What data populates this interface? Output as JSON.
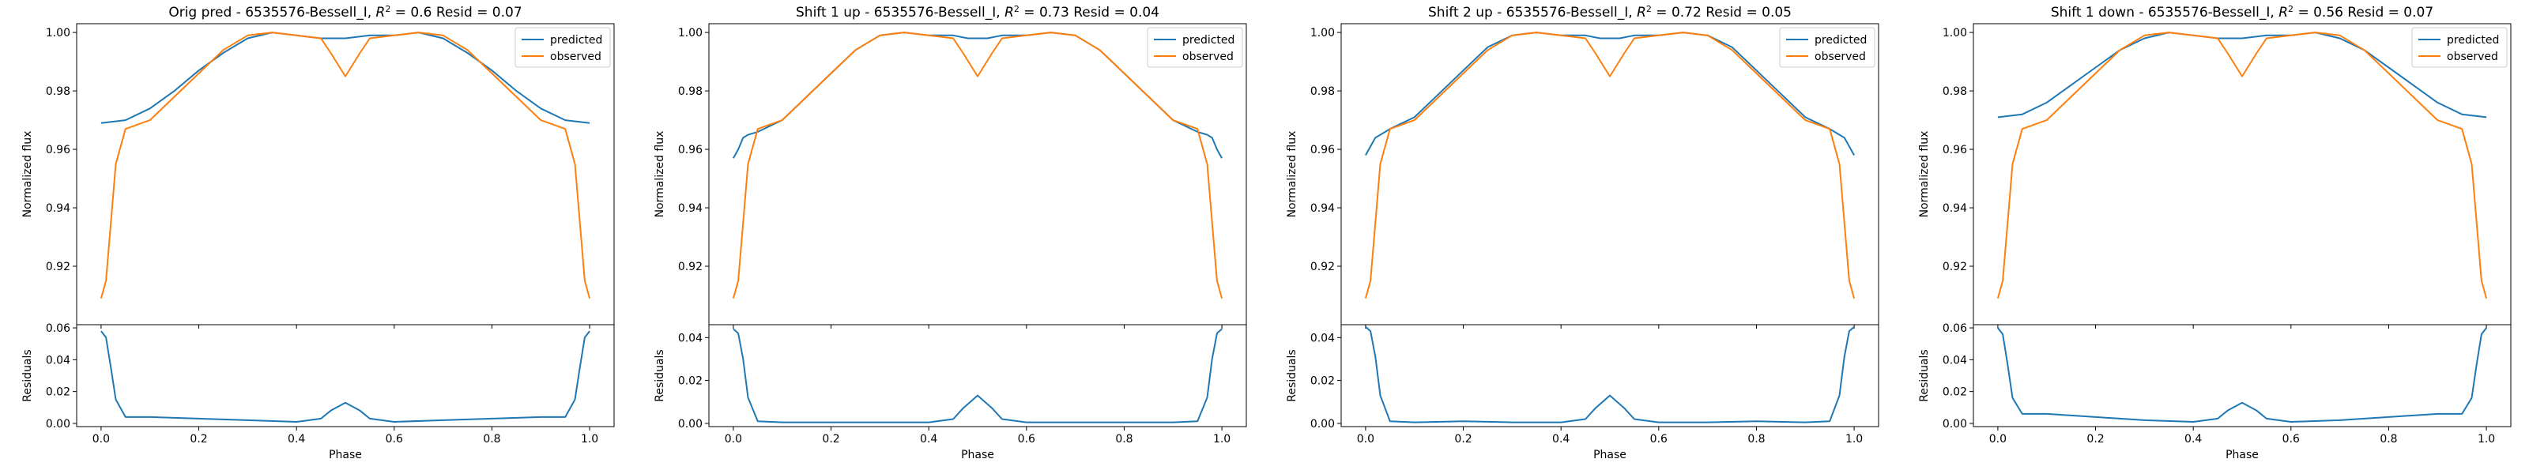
{
  "figure": {
    "legend_labels": [
      "predicted",
      "observed"
    ],
    "series_colors": {
      "predicted": "#1f77b4",
      "observed": "#ff7f0e"
    },
    "x_axis_label": "Phase",
    "top_y_label": "Normalized flux",
    "bottom_y_label": "Residuals"
  },
  "chart_data": [
    {
      "type": "line",
      "title_prefix": "Orig pred - 6535576-Bessell_I, ",
      "r2": "0.6",
      "title_suffix": " Resid = 0.07",
      "xlabel": "Phase",
      "xlim": [
        -0.05,
        1.05
      ],
      "xticks": [
        "0.0",
        "0.2",
        "0.4",
        "0.6",
        "0.8",
        "1.0"
      ],
      "flux_ylim": [
        0.9,
        1.003
      ],
      "flux_yticks": [
        "0.92",
        "0.94",
        "0.96",
        "0.98",
        "1.00"
      ],
      "resid_ylim": [
        -0.002,
        0.062
      ],
      "resid_yticks": [
        "0.00",
        "0.02",
        "0.04",
        "0.06"
      ],
      "legend_position": "top-right",
      "series": [
        {
          "name": "predicted",
          "x": [
            0.0,
            0.05,
            0.1,
            0.15,
            0.2,
            0.25,
            0.3,
            0.35,
            0.4,
            0.45,
            0.5,
            0.55,
            0.6,
            0.65,
            0.7,
            0.75,
            0.8,
            0.85,
            0.9,
            0.95,
            1.0
          ],
          "y": [
            0.969,
            0.97,
            0.974,
            0.98,
            0.987,
            0.993,
            0.998,
            1.0,
            0.999,
            0.998,
            0.998,
            0.999,
            0.999,
            1.0,
            0.998,
            0.993,
            0.987,
            0.98,
            0.974,
            0.97,
            0.969
          ]
        },
        {
          "name": "observed",
          "x": [
            0.0,
            0.01,
            0.02,
            0.03,
            0.05,
            0.1,
            0.15,
            0.2,
            0.25,
            0.3,
            0.35,
            0.4,
            0.45,
            0.47,
            0.5,
            0.53,
            0.55,
            0.6,
            0.65,
            0.7,
            0.75,
            0.8,
            0.85,
            0.9,
            0.95,
            0.97,
            0.98,
            0.99,
            1.0
          ],
          "y": [
            0.909,
            0.915,
            0.935,
            0.955,
            0.967,
            0.97,
            0.978,
            0.986,
            0.994,
            0.999,
            1.0,
            0.999,
            0.998,
            0.993,
            0.985,
            0.993,
            0.998,
            0.999,
            1.0,
            0.999,
            0.994,
            0.986,
            0.978,
            0.97,
            0.967,
            0.955,
            0.935,
            0.915,
            0.909
          ]
        }
      ],
      "residuals": {
        "x": [
          0.0,
          0.01,
          0.02,
          0.03,
          0.05,
          0.1,
          0.2,
          0.3,
          0.4,
          0.45,
          0.47,
          0.5,
          0.53,
          0.55,
          0.6,
          0.7,
          0.8,
          0.9,
          0.95,
          0.97,
          0.98,
          0.99,
          1.0
        ],
        "y": [
          0.058,
          0.054,
          0.035,
          0.015,
          0.004,
          0.004,
          0.003,
          0.002,
          0.001,
          0.003,
          0.008,
          0.013,
          0.008,
          0.003,
          0.001,
          0.002,
          0.003,
          0.004,
          0.004,
          0.015,
          0.035,
          0.054,
          0.058
        ]
      }
    },
    {
      "type": "line",
      "title_prefix": "Shift 1 up - 6535576-Bessell_I, ",
      "r2": "0.73",
      "title_suffix": " Resid = 0.04",
      "xlabel": "Phase",
      "xlim": [
        -0.05,
        1.05
      ],
      "xticks": [
        "0.0",
        "0.2",
        "0.4",
        "0.6",
        "0.8",
        "1.0"
      ],
      "flux_ylim": [
        0.9,
        1.003
      ],
      "flux_yticks": [
        "0.92",
        "0.94",
        "0.96",
        "0.98",
        "1.00"
      ],
      "resid_ylim": [
        -0.0015,
        0.046
      ],
      "resid_yticks": [
        "0.00",
        "0.02",
        "0.04"
      ],
      "legend_position": "top-right",
      "series": [
        {
          "name": "predicted",
          "x": [
            0.0,
            0.01,
            0.02,
            0.03,
            0.05,
            0.1,
            0.15,
            0.2,
            0.25,
            0.3,
            0.35,
            0.4,
            0.45,
            0.48,
            0.5,
            0.52,
            0.55,
            0.6,
            0.65,
            0.7,
            0.75,
            0.8,
            0.85,
            0.9,
            0.95,
            0.97,
            0.98,
            0.99,
            1.0
          ],
          "y": [
            0.957,
            0.96,
            0.964,
            0.965,
            0.966,
            0.97,
            0.978,
            0.986,
            0.994,
            0.999,
            1.0,
            0.999,
            0.999,
            0.998,
            0.998,
            0.998,
            0.999,
            0.999,
            1.0,
            0.999,
            0.994,
            0.986,
            0.978,
            0.97,
            0.966,
            0.965,
            0.964,
            0.96,
            0.957
          ]
        },
        {
          "name": "observed",
          "x": [
            0.0,
            0.01,
            0.02,
            0.03,
            0.05,
            0.1,
            0.15,
            0.2,
            0.25,
            0.3,
            0.35,
            0.4,
            0.45,
            0.47,
            0.5,
            0.53,
            0.55,
            0.6,
            0.65,
            0.7,
            0.75,
            0.8,
            0.85,
            0.9,
            0.95,
            0.97,
            0.98,
            0.99,
            1.0
          ],
          "y": [
            0.909,
            0.915,
            0.935,
            0.955,
            0.967,
            0.97,
            0.978,
            0.986,
            0.994,
            0.999,
            1.0,
            0.999,
            0.998,
            0.993,
            0.985,
            0.993,
            0.998,
            0.999,
            1.0,
            0.999,
            0.994,
            0.986,
            0.978,
            0.97,
            0.967,
            0.955,
            0.935,
            0.915,
            0.909
          ]
        }
      ],
      "residuals": {
        "x": [
          0.0,
          0.01,
          0.02,
          0.03,
          0.05,
          0.1,
          0.2,
          0.3,
          0.4,
          0.45,
          0.47,
          0.5,
          0.53,
          0.55,
          0.6,
          0.7,
          0.8,
          0.9,
          0.95,
          0.97,
          0.98,
          0.99,
          1.0
        ],
        "y": [
          0.044,
          0.042,
          0.03,
          0.012,
          0.001,
          0.0005,
          0.0005,
          0.0005,
          0.0005,
          0.002,
          0.007,
          0.013,
          0.007,
          0.002,
          0.0005,
          0.0005,
          0.0005,
          0.0005,
          0.001,
          0.012,
          0.03,
          0.042,
          0.044
        ]
      }
    },
    {
      "type": "line",
      "title_prefix": "Shift 2 up - 6535576-Bessell_I, ",
      "r2": "0.72",
      "title_suffix": " Resid = 0.05",
      "xlabel": "Phase",
      "xlim": [
        -0.05,
        1.05
      ],
      "xticks": [
        "0.0",
        "0.2",
        "0.4",
        "0.6",
        "0.8",
        "1.0"
      ],
      "flux_ylim": [
        0.9,
        1.003
      ],
      "flux_yticks": [
        "0.92",
        "0.94",
        "0.96",
        "0.98",
        "1.00"
      ],
      "resid_ylim": [
        -0.0015,
        0.046
      ],
      "resid_yticks": [
        "0.00",
        "0.02",
        "0.04"
      ],
      "legend_position": "top-right",
      "series": [
        {
          "name": "predicted",
          "x": [
            0.0,
            0.01,
            0.02,
            0.03,
            0.05,
            0.1,
            0.15,
            0.2,
            0.25,
            0.3,
            0.35,
            0.4,
            0.45,
            0.48,
            0.5,
            0.52,
            0.55,
            0.6,
            0.65,
            0.7,
            0.75,
            0.8,
            0.85,
            0.9,
            0.95,
            0.97,
            0.98,
            0.99,
            1.0
          ],
          "y": [
            0.958,
            0.961,
            0.964,
            0.965,
            0.967,
            0.971,
            0.979,
            0.987,
            0.995,
            0.999,
            1.0,
            0.999,
            0.999,
            0.998,
            0.998,
            0.998,
            0.999,
            0.999,
            1.0,
            0.999,
            0.995,
            0.987,
            0.979,
            0.971,
            0.967,
            0.965,
            0.964,
            0.961,
            0.958
          ]
        },
        {
          "name": "observed",
          "x": [
            0.0,
            0.01,
            0.02,
            0.03,
            0.05,
            0.1,
            0.15,
            0.2,
            0.25,
            0.3,
            0.35,
            0.4,
            0.45,
            0.47,
            0.5,
            0.53,
            0.55,
            0.6,
            0.65,
            0.7,
            0.75,
            0.8,
            0.85,
            0.9,
            0.95,
            0.97,
            0.98,
            0.99,
            1.0
          ],
          "y": [
            0.909,
            0.915,
            0.935,
            0.955,
            0.967,
            0.97,
            0.978,
            0.986,
            0.994,
            0.999,
            1.0,
            0.999,
            0.998,
            0.993,
            0.985,
            0.993,
            0.998,
            0.999,
            1.0,
            0.999,
            0.994,
            0.986,
            0.978,
            0.97,
            0.967,
            0.955,
            0.935,
            0.915,
            0.909
          ]
        }
      ],
      "residuals": {
        "x": [
          0.0,
          0.01,
          0.02,
          0.03,
          0.05,
          0.1,
          0.2,
          0.3,
          0.4,
          0.45,
          0.47,
          0.5,
          0.53,
          0.55,
          0.6,
          0.7,
          0.8,
          0.9,
          0.95,
          0.97,
          0.98,
          0.99,
          1.0
        ],
        "y": [
          0.045,
          0.043,
          0.031,
          0.013,
          0.001,
          0.0005,
          0.001,
          0.0005,
          0.0005,
          0.002,
          0.007,
          0.013,
          0.007,
          0.002,
          0.0005,
          0.0005,
          0.001,
          0.0005,
          0.001,
          0.013,
          0.031,
          0.043,
          0.045
        ]
      }
    },
    {
      "type": "line",
      "title_prefix": "Shift 1 down - 6535576-Bessell_I, ",
      "r2": "0.56",
      "title_suffix": " Resid = 0.07",
      "xlabel": "Phase",
      "xlim": [
        -0.05,
        1.05
      ],
      "xticks": [
        "0.0",
        "0.2",
        "0.4",
        "0.6",
        "0.8",
        "1.0"
      ],
      "flux_ylim": [
        0.9,
        1.003
      ],
      "flux_yticks": [
        "0.92",
        "0.94",
        "0.96",
        "0.98",
        "1.00"
      ],
      "resid_ylim": [
        -0.002,
        0.062
      ],
      "resid_yticks": [
        "0.00",
        "0.02",
        "0.04",
        "0.06"
      ],
      "legend_position": "top-right",
      "series": [
        {
          "name": "predicted",
          "x": [
            0.0,
            0.05,
            0.1,
            0.15,
            0.2,
            0.25,
            0.3,
            0.35,
            0.4,
            0.45,
            0.5,
            0.55,
            0.6,
            0.65,
            0.7,
            0.75,
            0.8,
            0.85,
            0.9,
            0.95,
            1.0
          ],
          "y": [
            0.971,
            0.972,
            0.976,
            0.982,
            0.988,
            0.994,
            0.998,
            1.0,
            0.999,
            0.998,
            0.998,
            0.999,
            0.999,
            1.0,
            0.998,
            0.994,
            0.988,
            0.982,
            0.976,
            0.972,
            0.971
          ]
        },
        {
          "name": "observed",
          "x": [
            0.0,
            0.01,
            0.02,
            0.03,
            0.05,
            0.1,
            0.15,
            0.2,
            0.25,
            0.3,
            0.35,
            0.4,
            0.45,
            0.47,
            0.5,
            0.53,
            0.55,
            0.6,
            0.65,
            0.7,
            0.75,
            0.8,
            0.85,
            0.9,
            0.95,
            0.97,
            0.98,
            0.99,
            1.0
          ],
          "y": [
            0.909,
            0.915,
            0.935,
            0.955,
            0.967,
            0.97,
            0.978,
            0.986,
            0.994,
            0.999,
            1.0,
            0.999,
            0.998,
            0.993,
            0.985,
            0.993,
            0.998,
            0.999,
            1.0,
            0.999,
            0.994,
            0.986,
            0.978,
            0.97,
            0.967,
            0.955,
            0.935,
            0.915,
            0.909
          ]
        }
      ],
      "residuals": {
        "x": [
          0.0,
          0.01,
          0.02,
          0.03,
          0.05,
          0.1,
          0.2,
          0.3,
          0.4,
          0.45,
          0.47,
          0.5,
          0.53,
          0.55,
          0.6,
          0.7,
          0.8,
          0.9,
          0.95,
          0.97,
          0.98,
          0.99,
          1.0
        ],
        "y": [
          0.06,
          0.056,
          0.037,
          0.016,
          0.006,
          0.006,
          0.004,
          0.002,
          0.001,
          0.003,
          0.008,
          0.013,
          0.008,
          0.003,
          0.001,
          0.002,
          0.004,
          0.006,
          0.006,
          0.016,
          0.037,
          0.056,
          0.06
        ]
      }
    }
  ]
}
